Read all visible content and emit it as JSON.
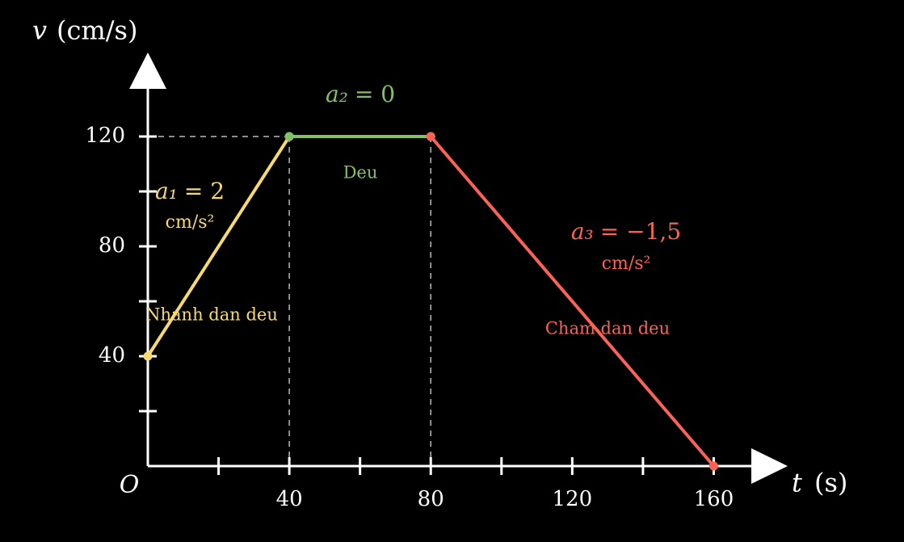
{
  "chart_data": {
    "type": "line",
    "y_symbol": "v",
    "y_unit": "(cm/s)",
    "x_symbol": "t",
    "x_unit": "(s)",
    "origin_label": "O",
    "xlim": [
      0,
      180
    ],
    "ylim": [
      0,
      150
    ],
    "xticks": [
      40,
      80,
      120,
      160
    ],
    "yticks": [
      40,
      80,
      120
    ],
    "x_minor_ticks": [
      20,
      60,
      100,
      140
    ],
    "y_minor_ticks": [
      20,
      60,
      100
    ],
    "series": [
      {
        "color": "#f7d96f",
        "x": [
          0,
          40
        ],
        "values": [
          40,
          120
        ],
        "label_symbol": "a₁",
        "label_value": "= 2",
        "unit": "cm/s²",
        "description": "Nhanh dan deu"
      },
      {
        "color": "#83c167",
        "x": [
          40,
          80
        ],
        "values": [
          120,
          120
        ],
        "label_symbol": "a₂",
        "label_value": "= 0",
        "description": "Deu"
      },
      {
        "color": "#fc6255",
        "x": [
          80,
          160
        ],
        "values": [
          120,
          0
        ],
        "label_symbol": "a₃",
        "label_value": "= −1,5",
        "unit": "cm/s²",
        "description": "Cham dan deu"
      }
    ]
  }
}
